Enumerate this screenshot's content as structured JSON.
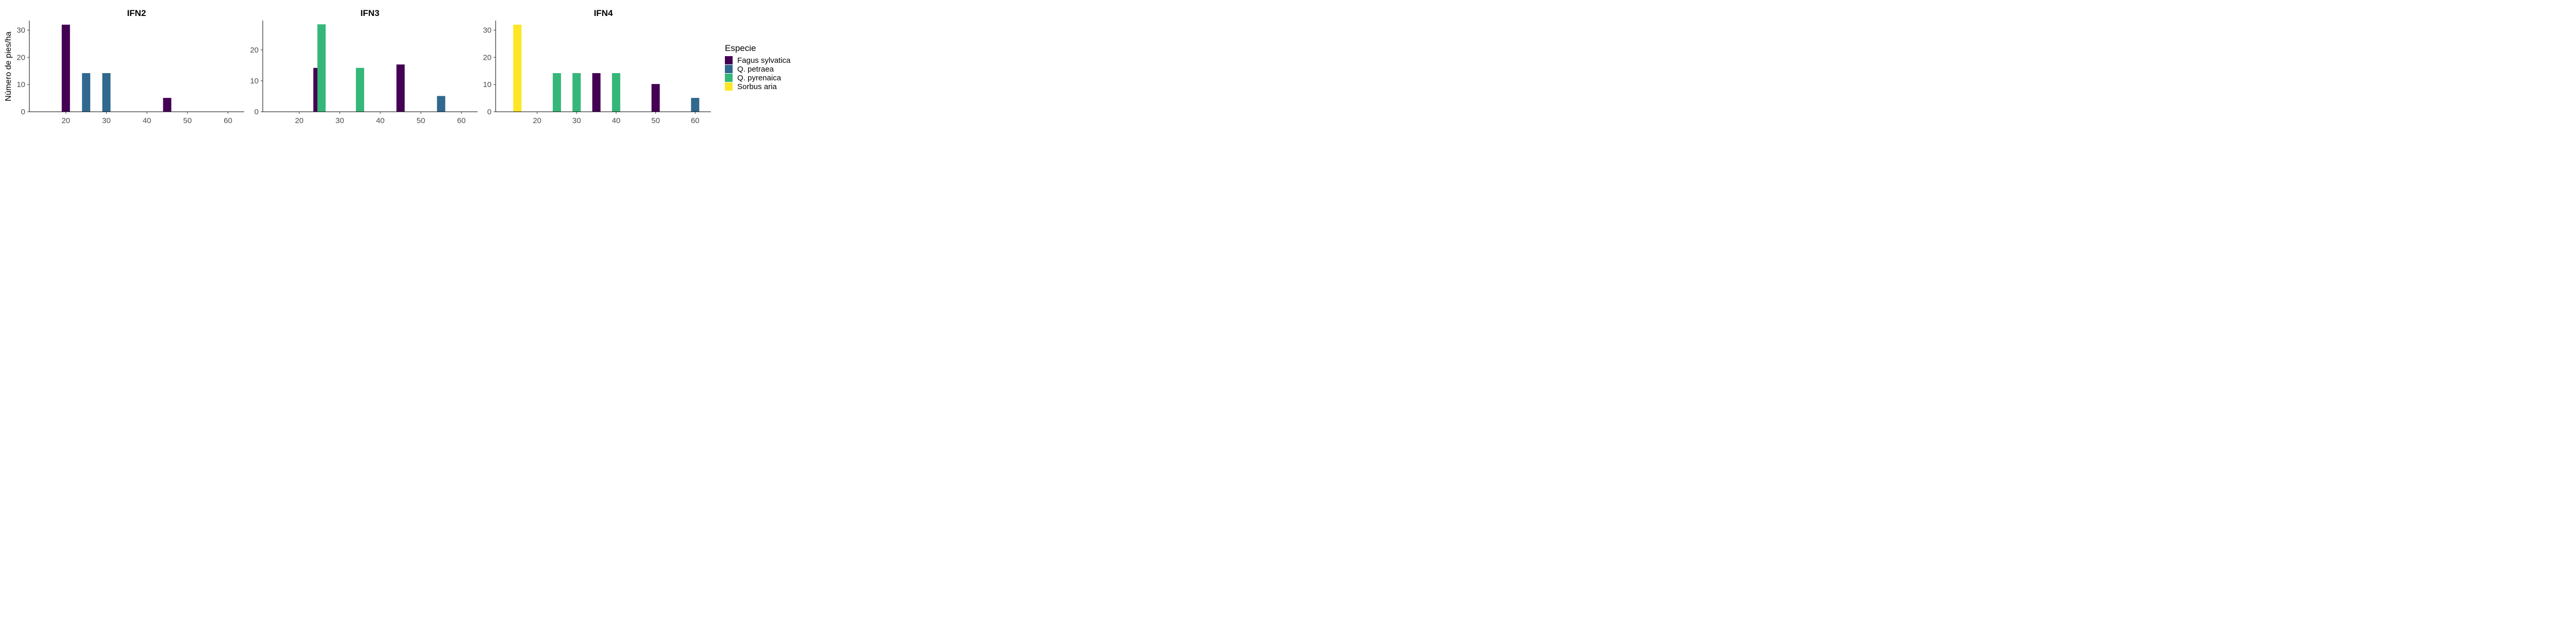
{
  "chart_data": {
    "type": "bar",
    "ylabel": "Número de pies/ha",
    "legend": {
      "title": "Especie",
      "position": "right",
      "entries": [
        "Fagus sylvatica",
        "Q. petraea",
        "Q. pyrenaica",
        "Sorbus aria"
      ]
    },
    "colors": {
      "Fagus sylvatica": "#440154",
      "Q. petraea": "#31688e",
      "Q. pyrenaica": "#35b779",
      "Sorbus aria": "#fde725"
    },
    "grid": false,
    "panels": [
      {
        "title": "IFN2",
        "xlim": [
          11,
          64
        ],
        "ylim": [
          0,
          33.5
        ],
        "xticks": [
          20,
          30,
          40,
          50,
          60
        ],
        "yticks": [
          0,
          10,
          20,
          30
        ],
        "bars": [
          {
            "species": "Fagus sylvatica",
            "x": 20,
            "value": 32
          },
          {
            "species": "Q. petraea",
            "x": 25,
            "value": 14.2
          },
          {
            "species": "Q. petraea",
            "x": 30,
            "value": 14.2
          },
          {
            "species": "Fagus sylvatica",
            "x": 45,
            "value": 5.1
          }
        ]
      },
      {
        "title": "IFN3",
        "xlim": [
          11,
          64
        ],
        "ylim": [
          0,
          29.5
        ],
        "xticks": [
          20,
          30,
          40,
          50,
          60
        ],
        "yticks": [
          0,
          10,
          20
        ],
        "bars": [
          {
            "species": "Fagus sylvatica",
            "x": 24.5,
            "value": 14.2
          },
          {
            "species": "Q. pyrenaica",
            "x": 25.5,
            "value": 28.3
          },
          {
            "species": "Q. pyrenaica",
            "x": 35,
            "value": 14.2
          },
          {
            "species": "Fagus sylvatica",
            "x": 45,
            "value": 15.3
          },
          {
            "species": "Q. petraea",
            "x": 55,
            "value": 5.1
          }
        ]
      },
      {
        "title": "IFN4",
        "xlim": [
          9.5,
          64
        ],
        "ylim": [
          0,
          33.5
        ],
        "xticks": [
          20,
          30,
          40,
          50,
          60
        ],
        "yticks": [
          0,
          10,
          20,
          30
        ],
        "bars": [
          {
            "species": "Sorbus aria",
            "x": 15,
            "value": 32
          },
          {
            "species": "Q. pyrenaica",
            "x": 25,
            "value": 14.2
          },
          {
            "species": "Q. pyrenaica",
            "x": 30,
            "value": 14.2
          },
          {
            "species": "Fagus sylvatica",
            "x": 35,
            "value": 14.2
          },
          {
            "species": "Q. pyrenaica",
            "x": 40,
            "value": 14.2
          },
          {
            "species": "Fagus sylvatica",
            "x": 50,
            "value": 10.2
          },
          {
            "species": "Q. petraea",
            "x": 60,
            "value": 5.1
          }
        ]
      }
    ]
  }
}
